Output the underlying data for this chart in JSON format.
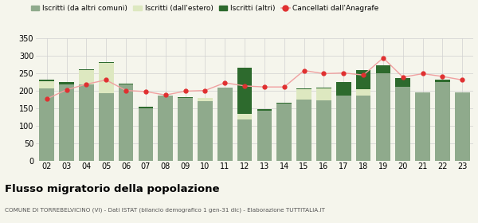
{
  "years": [
    "02",
    "03",
    "04",
    "05",
    "06",
    "07",
    "08",
    "09",
    "10",
    "11",
    "12",
    "13",
    "14",
    "15",
    "16",
    "17",
    "18",
    "19",
    "20",
    "21",
    "22",
    "23"
  ],
  "iscritti_comuni": [
    205,
    218,
    218,
    193,
    218,
    150,
    185,
    178,
    170,
    208,
    118,
    143,
    163,
    175,
    172,
    185,
    185,
    250,
    210,
    195,
    225,
    195
  ],
  "iscritti_estero": [
    22,
    0,
    40,
    85,
    0,
    0,
    0,
    0,
    8,
    0,
    15,
    0,
    0,
    28,
    35,
    0,
    18,
    0,
    0,
    0,
    0,
    0
  ],
  "iscritti_altri": [
    3,
    5,
    3,
    2,
    2,
    3,
    0,
    2,
    0,
    0,
    133,
    3,
    3,
    3,
    2,
    40,
    55,
    22,
    25,
    0,
    5,
    0
  ],
  "cancellati": [
    176,
    202,
    218,
    230,
    200,
    197,
    187,
    198,
    200,
    222,
    213,
    210,
    210,
    257,
    248,
    250,
    244,
    293,
    238,
    248,
    240,
    230
  ],
  "color_comuni": "#8faa8c",
  "color_estero": "#dde8c0",
  "color_altri": "#2d6a2d",
  "color_cancellati": "#e03030",
  "color_line": "#f0a0a0",
  "ylim": [
    0,
    350
  ],
  "yticks": [
    0,
    50,
    100,
    150,
    200,
    250,
    300,
    350
  ],
  "title": "Flusso migratorio della popolazione",
  "subtitle": "COMUNE DI TORREBELVICINO (VI) - Dati ISTAT (bilancio demografico 1 gen-31 dic) - Elaborazione TUTTITALIA.IT",
  "legend_labels": [
    "Iscritti (da altri comuni)",
    "Iscritti (dall'estero)",
    "Iscritti (altri)",
    "Cancellati dall'Anagrafe"
  ],
  "bg_color": "#f5f5ec",
  "grid_color": "#d0d0d0"
}
